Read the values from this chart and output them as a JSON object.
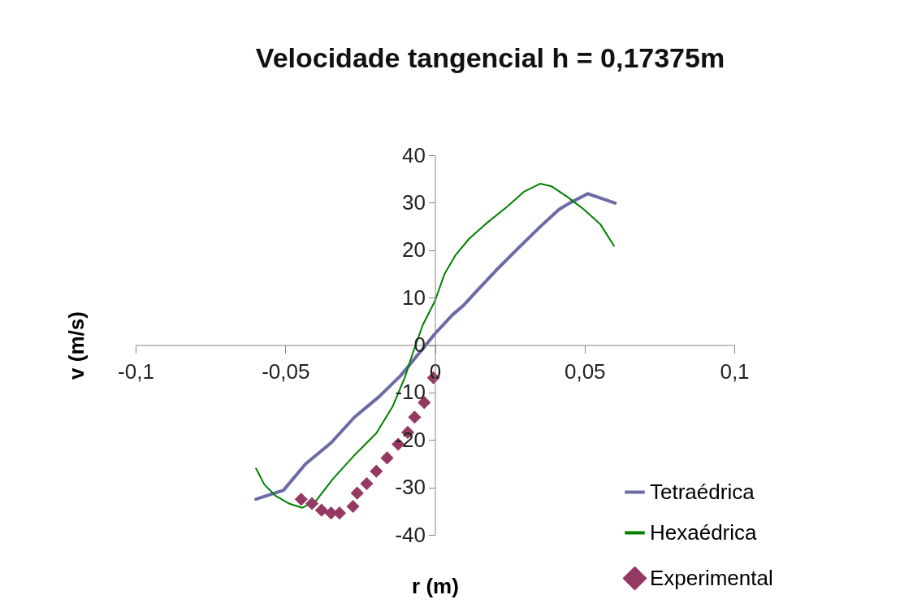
{
  "chart_data": {
    "type": "line",
    "title": "Velocidade tangencial   h = 0,17375m",
    "xlabel": "r (m)",
    "ylabel": "v (m/s)",
    "xlim": [
      -0.1,
      0.1
    ],
    "ylim": [
      -40,
      40
    ],
    "xticks": [
      {
        "value": -0.1,
        "label": "-0,1"
      },
      {
        "value": -0.05,
        "label": "-0,05"
      },
      0,
      {
        "value": 0.05,
        "label": "0,05"
      },
      {
        "value": 0.1,
        "label": "0,1"
      }
    ],
    "yticks": [
      -40,
      -30,
      -20,
      -10,
      0,
      10,
      20,
      30,
      40
    ],
    "grid": false,
    "legend": "right",
    "series": [
      {
        "name": "Tetraédrica",
        "type": "line",
        "marker": "none",
        "color": "#6b6ba6",
        "x": [
          -0.0598,
          -0.0506,
          -0.0433,
          -0.0347,
          -0.0269,
          -0.0187,
          -0.0114,
          -0.005,
          0,
          0.0059,
          0.0096,
          0.015,
          0.0205,
          0.0278,
          0.0351,
          0.0415,
          0.0452,
          0.0511,
          0.0602
        ],
        "values": [
          -32.5,
          -30.6,
          -25.1,
          -20.6,
          -15.2,
          -10.9,
          -6.4,
          -1.5,
          2.4,
          6.4,
          8.4,
          12.1,
          15.8,
          20.4,
          24.9,
          28.6,
          30,
          31.9,
          29.9
        ]
      },
      {
        "name": "Hexaédrica",
        "type": "line",
        "marker": "none",
        "color": "#008000",
        "x": [
          -0.0598,
          -0.057,
          -0.0534,
          -0.0488,
          -0.0443,
          -0.0397,
          -0.0342,
          -0.0269,
          -0.0196,
          -0.0141,
          -0.01,
          -0.0073,
          -0.0041,
          0,
          0.0032,
          0.0068,
          0.0114,
          0.0169,
          0.0242,
          0.0297,
          0.0351,
          0.0388,
          0.0443,
          0.0497,
          0.0552,
          0.0598
        ],
        "values": [
          -26,
          -29.4,
          -31.7,
          -33.4,
          -34.3,
          -32.8,
          -28.3,
          -23.2,
          -18.6,
          -12.9,
          -6.7,
          -1.5,
          4.2,
          9.3,
          15,
          18.9,
          22.4,
          25.5,
          29.2,
          32.3,
          34,
          33.5,
          31.2,
          28.6,
          25.5,
          20.9
        ]
      },
      {
        "name": "Experimental",
        "type": "scatter",
        "marker": "diamond",
        "color": "#953963",
        "x": [
          -0.0447,
          -0.0411,
          -0.0379,
          -0.0347,
          -0.0319,
          -0.0274,
          -0.026,
          -0.0228,
          -0.0196,
          -0.016,
          -0.0123,
          -0.0091,
          -0.0068,
          -0.0036,
          -0.0005
        ],
        "values": [
          -32.5,
          -33.4,
          -34.8,
          -35.4,
          -35.4,
          -34,
          -31.2,
          -29.2,
          -26.6,
          -23.8,
          -20.9,
          -18.4,
          -15.2,
          -12.1,
          -6.9
        ]
      }
    ]
  }
}
